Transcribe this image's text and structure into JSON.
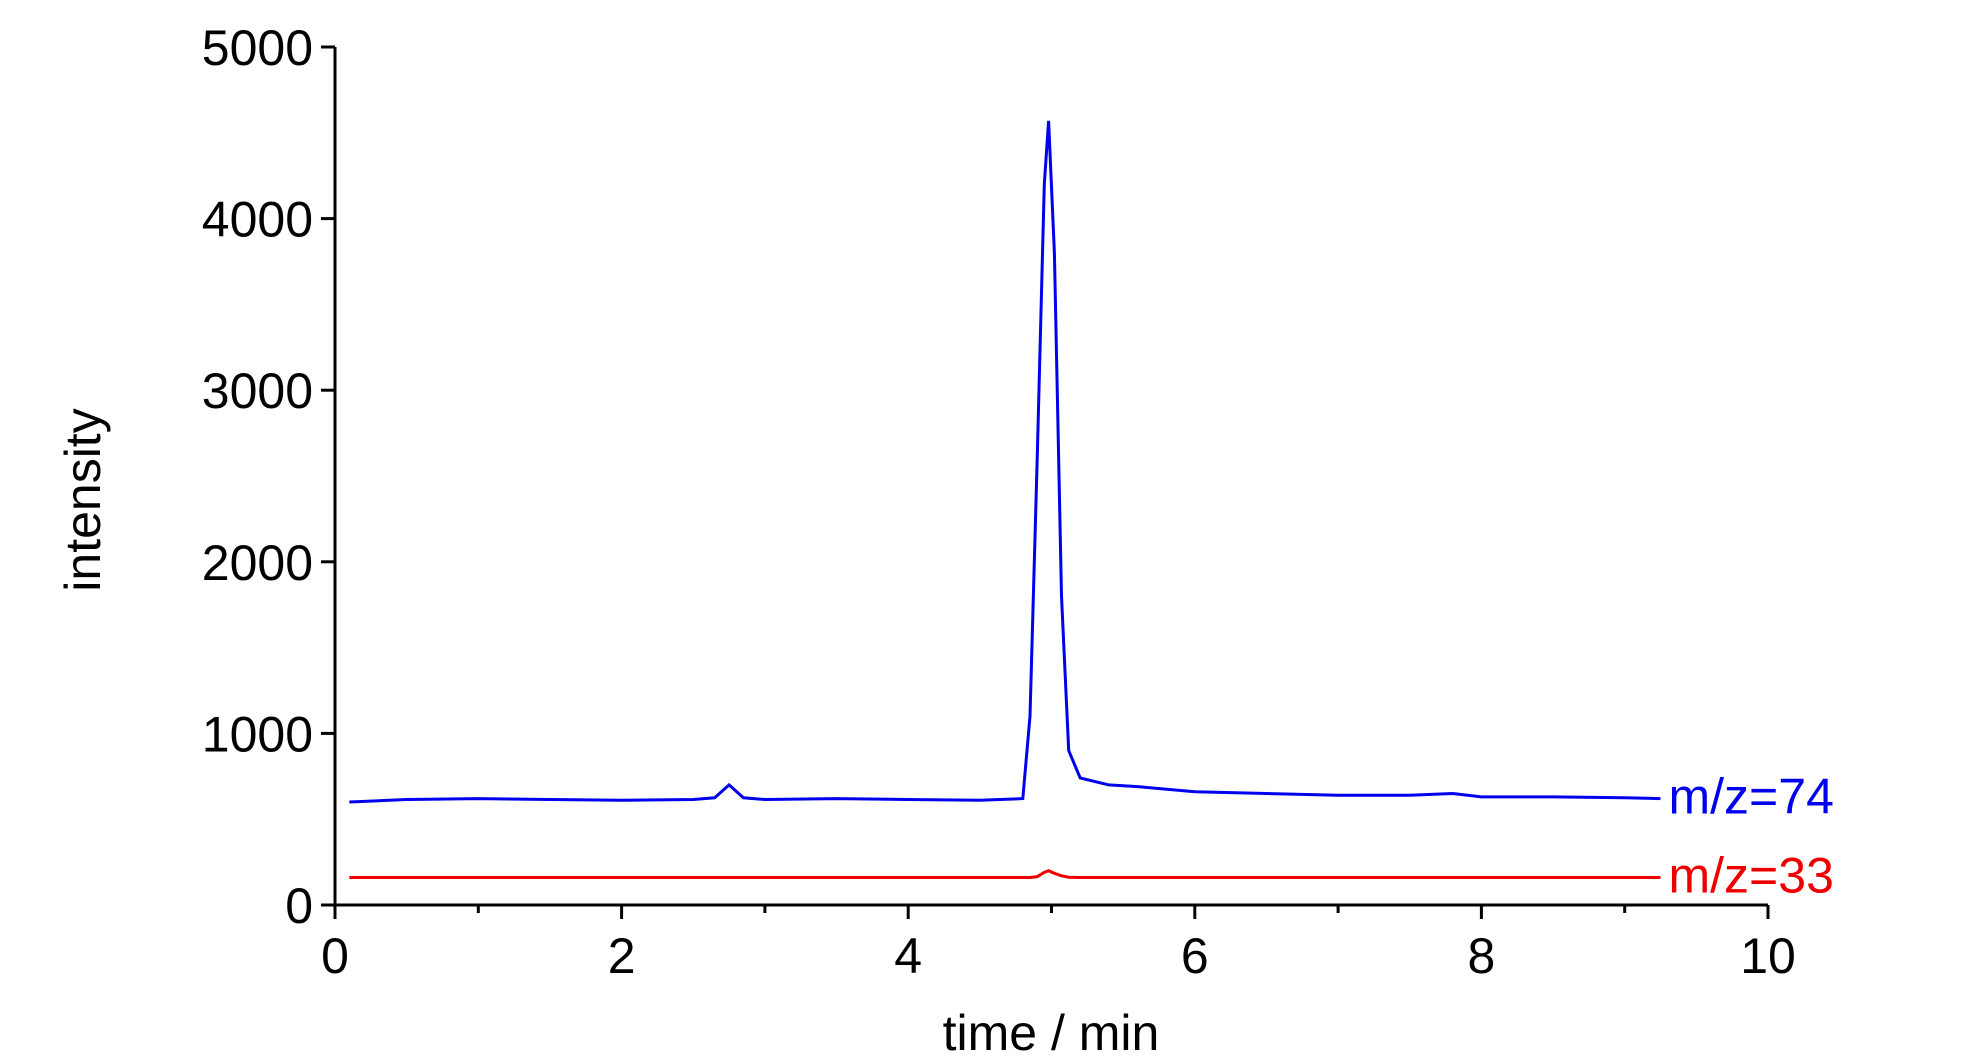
{
  "chart_data": {
    "type": "line",
    "x_label": "time / min",
    "y_label": "intensity",
    "x": [
      0.1,
      0.5,
      1.0,
      1.5,
      2.0,
      2.5,
      2.65,
      2.75,
      2.85,
      3.0,
      3.5,
      4.0,
      4.5,
      4.8,
      4.85,
      4.9,
      4.95,
      4.98,
      5.02,
      5.07,
      5.12,
      5.2,
      5.4,
      5.6,
      6.0,
      6.5,
      7.0,
      7.5,
      7.8,
      8.0,
      8.5,
      9.0,
      9.25
    ],
    "series": [
      {
        "name": "m/z=74",
        "color": "#0000ee",
        "values": [
          600,
          615,
          620,
          615,
          610,
          615,
          625,
          700,
          625,
          615,
          620,
          615,
          610,
          620,
          1100,
          2600,
          4200,
          4570,
          3800,
          1800,
          900,
          740,
          700,
          690,
          660,
          650,
          640,
          640,
          650,
          630,
          630,
          625,
          620
        ]
      },
      {
        "name": "m/z=33",
        "color": "#ee0000",
        "values": [
          160,
          160,
          160,
          160,
          160,
          160,
          160,
          160,
          160,
          160,
          160,
          160,
          160,
          160,
          160,
          165,
          190,
          200,
          185,
          170,
          162,
          160,
          160,
          160,
          160,
          160,
          160,
          160,
          160,
          160,
          160,
          160,
          160
        ]
      }
    ],
    "xlim": [
      0,
      10
    ],
    "xticks": [
      0,
      2,
      4,
      6,
      8,
      10
    ],
    "ylim": [
      0,
      5000
    ],
    "yticks": [
      0,
      1000,
      2000,
      3000,
      4000,
      5000
    ]
  }
}
